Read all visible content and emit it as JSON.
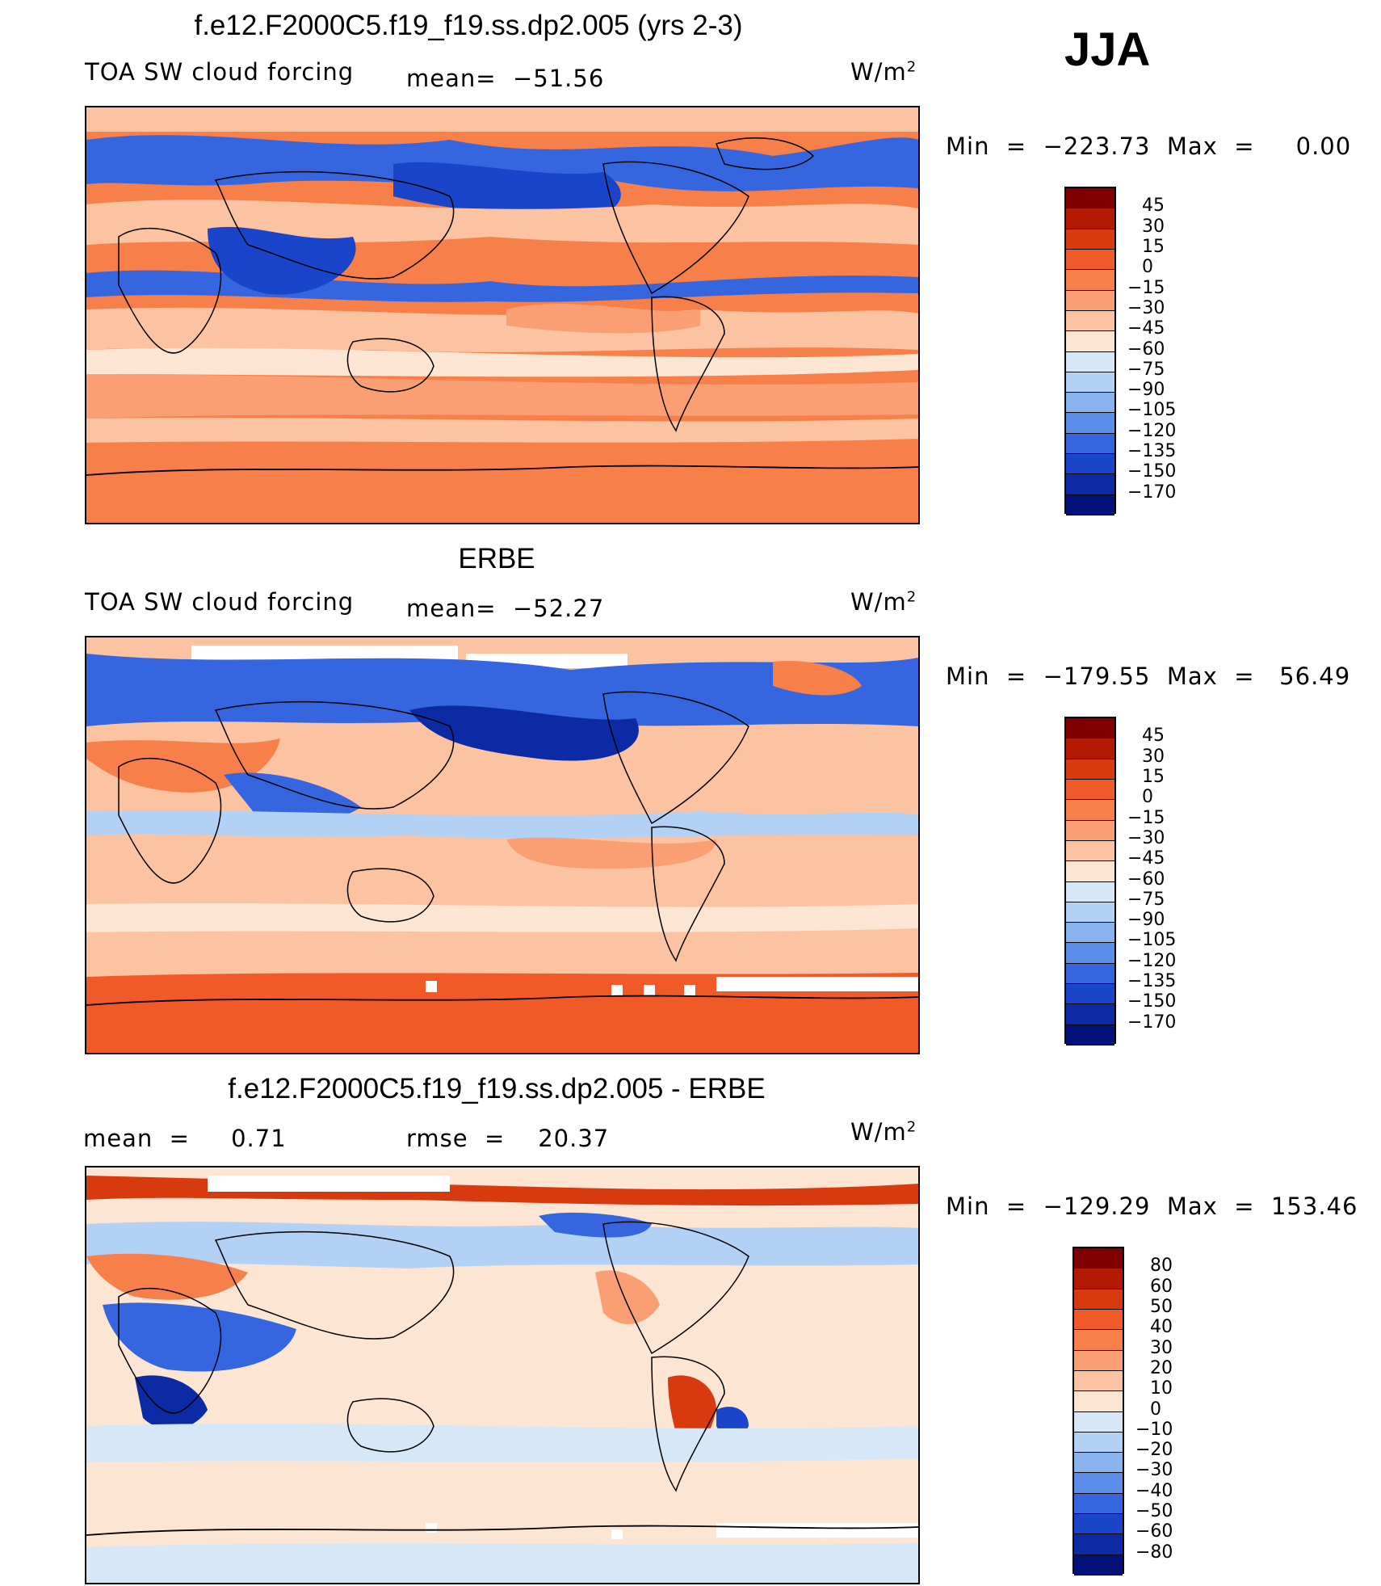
{
  "season": "JJA",
  "panels": [
    {
      "title": "f.e12.F2000C5.f19_f19.ss.dp2.005 (yrs 2-3)",
      "left_label": "TOA SW cloud forcing",
      "center_label": "mean=  −51.56",
      "units": "W/m",
      "units_sup": "2",
      "minmax": "Min  =  −223.73  Max  =     0.00",
      "colorbar": {
        "labels": [
          "45",
          "30",
          "15",
          "0",
          "−15",
          "−30",
          "−45",
          "−60",
          "−75",
          "−90",
          "−105",
          "−120",
          "−135",
          "−150",
          "−170"
        ],
        "colors": [
          "#7f0000",
          "#b21a00",
          "#d83a10",
          "#f05a28",
          "#f77f4a",
          "#fa9f74",
          "#fcc3a3",
          "#fde5d3",
          "#d6e8f8",
          "#b3d1f5",
          "#8ab4f0",
          "#5b8ee8",
          "#3566df",
          "#1a44c9",
          "#0c2aa3",
          "#03117a"
        ]
      },
      "map_style": "model"
    },
    {
      "title": "ERBE",
      "left_label": "TOA SW cloud forcing",
      "center_label": "mean=  −52.27",
      "units": "W/m",
      "units_sup": "2",
      "minmax": "Min  =  −179.55  Max  =   56.49",
      "colorbar": {
        "labels": [
          "45",
          "30",
          "15",
          "0",
          "−15",
          "−30",
          "−45",
          "−60",
          "−75",
          "−90",
          "−105",
          "−120",
          "−135",
          "−150",
          "−170"
        ],
        "colors": [
          "#7f0000",
          "#b21a00",
          "#d83a10",
          "#f05a28",
          "#f77f4a",
          "#fa9f74",
          "#fcc3a3",
          "#fde5d3",
          "#d6e8f8",
          "#b3d1f5",
          "#8ab4f0",
          "#5b8ee8",
          "#3566df",
          "#1a44c9",
          "#0c2aa3",
          "#03117a"
        ]
      },
      "map_style": "obs"
    },
    {
      "title": "f.e12.F2000C5.f19_f19.ss.dp2.005 - ERBE",
      "left_label": "mean  =     0.71",
      "center_label": "rmse  =    20.37",
      "units": "W/m",
      "units_sup": "2",
      "minmax": "Min  =  −129.29  Max  =  153.46",
      "colorbar": {
        "labels": [
          "80",
          "60",
          "50",
          "40",
          "30",
          "20",
          "10",
          "0",
          "−10",
          "−20",
          "−30",
          "−40",
          "−50",
          "−60",
          "−80"
        ],
        "colors": [
          "#7f0000",
          "#b21a00",
          "#d83a10",
          "#f05a28",
          "#f77f4a",
          "#fa9f74",
          "#fcc3a3",
          "#fde5d3",
          "#d6e8f8",
          "#b3d1f5",
          "#8ab4f0",
          "#5b8ee8",
          "#3566df",
          "#1a44c9",
          "#0c2aa3",
          "#03117a"
        ]
      },
      "map_style": "diff"
    }
  ]
}
